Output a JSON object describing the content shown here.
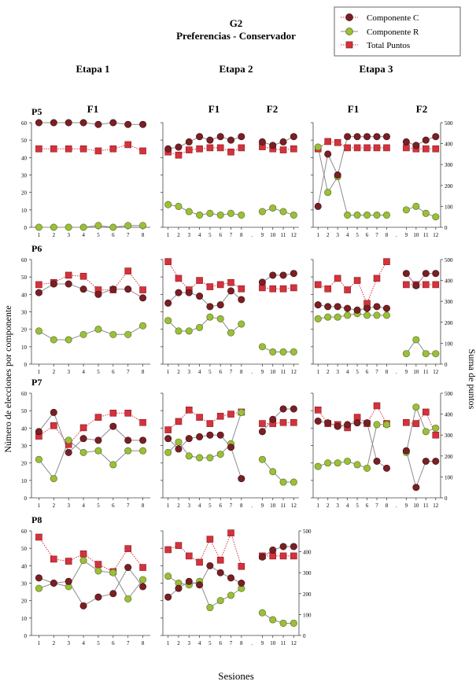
{
  "figure": {
    "title": "G2",
    "subtitle": "Preferencias - Conservador",
    "ylabel_left": "Número de elecciones por componente",
    "ylabel_right": "Suma de puntos",
    "xlabel": "Sesiones",
    "stage_labels": [
      "Etapa 1",
      "Etapa 2",
      "Etapa 3"
    ],
    "phase_labels": {
      "P5_e1": "F1",
      "P5_e2a": "F1",
      "P5_e2b": "F2",
      "P5_e3a": "F1",
      "P5_e3b": "F2"
    },
    "legend": {
      "c": "Componente C",
      "r": "Componente R",
      "total": "Total Puntos"
    },
    "colors": {
      "c": "#7a1f24",
      "r": "#9bbf3a",
      "total": "#d4323c",
      "line": "#8c8c8c",
      "axis": "#444444"
    }
  },
  "chart_data": {
    "type": "line",
    "left_axis": {
      "range": [
        0,
        60
      ],
      "ticks": [
        0,
        10,
        20,
        30,
        40,
        50,
        60
      ]
    },
    "right_axis": {
      "range": [
        0,
        500
      ],
      "ticks": [
        0,
        100,
        200,
        300,
        400,
        500
      ]
    },
    "participants": [
      {
        "name": "P5",
        "stages": [
          {
            "x": [
              1,
              2,
              3,
              4,
              5,
              6,
              7,
              8
            ],
            "c": [
              60,
              60,
              60,
              60,
              59,
              60,
              59,
              59
            ],
            "r": [
              0,
              0,
              0,
              0,
              1,
              0,
              1,
              1
            ],
            "total": [
              375,
              375,
              375,
              375,
              365,
              375,
              395,
              365
            ],
            "right_axis": false
          },
          {
            "x": [
              1,
              2,
              3,
              4,
              5,
              6,
              7,
              8,
              9,
              10,
              11,
              12
            ],
            "c": [
              45,
              46,
              49,
              52,
              50,
              52,
              50,
              52,
              49,
              47,
              49,
              52
            ],
            "r": [
              13,
              12,
              9,
              7,
              8,
              7,
              8,
              7,
              9,
              11,
              9,
              7
            ],
            "total": [
              360,
              345,
              370,
              375,
              380,
              380,
              360,
              380,
              385,
              375,
              370,
              375
            ],
            "right_axis": false
          },
          {
            "x": [
              1,
              2,
              3,
              4,
              5,
              6,
              7,
              8,
              9,
              10,
              11,
              12
            ],
            "c": [
              12,
              42,
              30,
              52,
              52,
              52,
              52,
              52,
              49,
              47,
              50,
              52
            ],
            "r": [
              46,
              20,
              29,
              7,
              7,
              7,
              7,
              7,
              10,
              12,
              8,
              6
            ],
            "total": [
              375,
              410,
              405,
              380,
              380,
              380,
              380,
              380,
              380,
              375,
              375,
              375
            ],
            "right_axis": true
          }
        ]
      },
      {
        "name": "P6",
        "stages": [
          {
            "x": [
              1,
              2,
              3,
              4,
              5,
              6,
              7,
              8
            ],
            "c": [
              41,
              46,
              46,
              43,
              40,
              43,
              43,
              38
            ],
            "r": [
              19,
              14,
              14,
              17,
              20,
              17,
              17,
              22
            ],
            "total": [
              380,
              390,
              425,
              420,
              355,
              355,
              445,
              355
            ],
            "right_axis": false
          },
          {
            "x": [
              1,
              2,
              3,
              4,
              5,
              6,
              7,
              8,
              9,
              10,
              11,
              12
            ],
            "c": [
              35,
              41,
              41,
              39,
              33,
              34,
              42,
              37,
              47,
              51,
              51,
              52
            ],
            "r": [
              25,
              19,
              19,
              21,
              27,
              26,
              18,
              23,
              10,
              7,
              7,
              7
            ],
            "total": [
              490,
              410,
              355,
              400,
              370,
              380,
              390,
              360,
              365,
              360,
              360,
              365
            ],
            "right_axis": false
          },
          {
            "x": [
              1,
              2,
              3,
              4,
              5,
              6,
              7,
              8,
              9,
              10,
              11,
              12
            ],
            "c": [
              34,
              33,
              33,
              32,
              31,
              32,
              33,
              32,
              52,
              45,
              52,
              52
            ],
            "r": [
              26,
              27,
              27,
              28,
              29,
              28,
              28,
              28,
              6,
              14,
              6,
              6
            ],
            "total": [
              380,
              360,
              410,
              355,
              400,
              290,
              410,
              490,
              380,
              380,
              380,
              380
            ],
            "right_axis": true
          }
        ]
      },
      {
        "name": "P7",
        "stages": [
          {
            "x": [
              1,
              2,
              3,
              4,
              5,
              6,
              7,
              8
            ],
            "c": [
              38,
              49,
              26,
              34,
              33,
              41,
              33,
              33
            ],
            "r": [
              22,
              11,
              33,
              26,
              27,
              19,
              27,
              27
            ],
            "total": [
              295,
              345,
              255,
              335,
              385,
              405,
              405,
              360
            ],
            "right_axis": false
          },
          {
            "x": [
              1,
              2,
              3,
              4,
              5,
              6,
              7,
              8,
              9,
              10,
              11,
              12
            ],
            "c": [
              34,
              28,
              34,
              35,
              36,
              36,
              29,
              11,
              38,
              45,
              51,
              51
            ],
            "r": [
              26,
              32,
              24,
              23,
              23,
              25,
              31,
              49,
              22,
              15,
              9,
              9
            ],
            "total": [
              325,
              365,
              420,
              385,
              355,
              390,
              400,
              410,
              355,
              355,
              360,
              360
            ],
            "right_axis": false
          },
          {
            "x": [
              1,
              2,
              3,
              4,
              5,
              6,
              7,
              8,
              9,
              10,
              11,
              12
            ],
            "c": [
              44,
              43,
              41,
              42,
              43,
              43,
              21,
              17,
              27,
              6,
              21,
              21
            ],
            "r": [
              18,
              20,
              20,
              21,
              19,
              17,
              42,
              42,
              26,
              52,
              38,
              40
            ],
            "total": [
              420,
              355,
              350,
              335,
              385,
              355,
              440,
              355,
              360,
              355,
              410,
              300
            ],
            "right_axis": true
          }
        ]
      },
      {
        "name": "P8",
        "stages": [
          {
            "x": [
              1,
              2,
              3,
              4,
              5,
              6,
              7,
              8
            ],
            "c": [
              33,
              30,
              31,
              17,
              22,
              24,
              39,
              28
            ],
            "r": [
              27,
              30,
              28,
              43,
              37,
              36,
              21,
              32
            ],
            "total": [
              470,
              365,
              355,
              390,
              340,
              305,
              415,
              325
            ],
            "right_axis": false
          },
          {
            "x": [
              1,
              2,
              3,
              4,
              5,
              6,
              7,
              8,
              9,
              10,
              11,
              12
            ],
            "c": [
              22,
              27,
              31,
              29,
              40,
              36,
              33,
              30,
              45,
              49,
              51,
              51
            ],
            "r": [
              34,
              30,
              29,
              31,
              16,
              20,
              23,
              27,
              13,
              9,
              7,
              7
            ],
            "total": [
              410,
              430,
              380,
              350,
              460,
              360,
              490,
              330,
              380,
              380,
              380,
              380
            ],
            "right_axis": true
          }
        ]
      }
    ]
  }
}
